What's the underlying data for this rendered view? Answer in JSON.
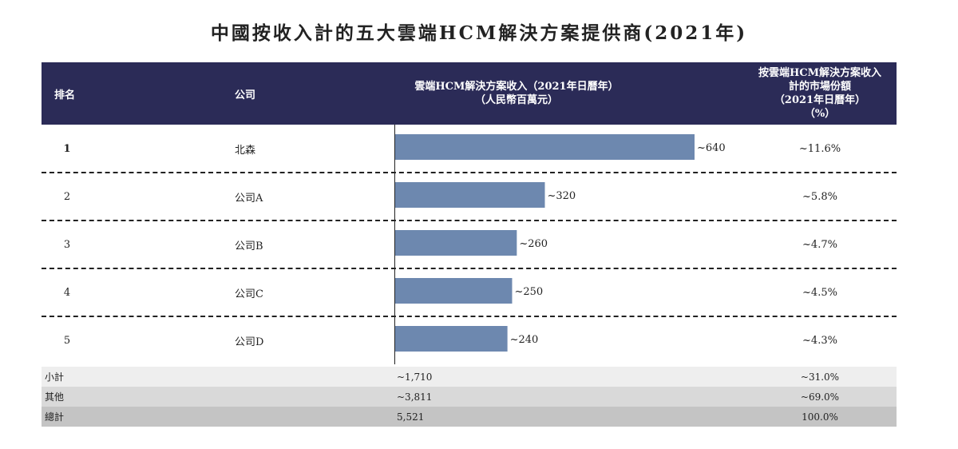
{
  "title": "中國按收入計的五大雲端HCM解決方案提供商(2021年)",
  "header": {
    "rank": "排名",
    "company": "公司",
    "revenue_line1": "雲端HCM解決方案收入（2021年日曆年）",
    "revenue_line2": "（人民幣百萬元）",
    "share_line1": "按雲端HCM解決方案收入",
    "share_line2": "計的市場份額",
    "share_line3": "（2021年日曆年）",
    "share_line4": "（%）"
  },
  "rows": [
    {
      "rank": "1",
      "company": "北森",
      "revenue_label": "~640",
      "share": "~11.6%"
    },
    {
      "rank": "2",
      "company": "公司A",
      "revenue_label": "~320",
      "share": "~5.8%"
    },
    {
      "rank": "3",
      "company": "公司B",
      "revenue_label": "~260",
      "share": "~4.7%"
    },
    {
      "rank": "4",
      "company": "公司C",
      "revenue_label": "~250",
      "share": "~4.5%"
    },
    {
      "rank": "5",
      "company": "公司D",
      "revenue_label": "~240",
      "share": "~4.3%"
    }
  ],
  "summary": [
    {
      "label": "小計",
      "revenue": "~1,710",
      "share": "~31.0%",
      "color": "#eeeeee"
    },
    {
      "label": "其他",
      "revenue": "~3,811",
      "share": "~69.0%",
      "color": "#d9d9d9"
    },
    {
      "label": "總計",
      "revenue": "5,521",
      "share": "100.0%",
      "color": "#c4c4c4"
    }
  ],
  "colors": {
    "header_bg": "#2b2b57",
    "bar": "#6d88af"
  },
  "chart_data": {
    "type": "bar",
    "orientation": "horizontal",
    "categories": [
      "北森",
      "公司A",
      "公司B",
      "公司C",
      "公司D"
    ],
    "values": [
      640,
      320,
      260,
      250,
      240
    ],
    "value_labels": [
      "~640",
      "~320",
      "~260",
      "~250",
      "~240"
    ],
    "xlim": [
      0,
      700
    ],
    "grid": false
  }
}
